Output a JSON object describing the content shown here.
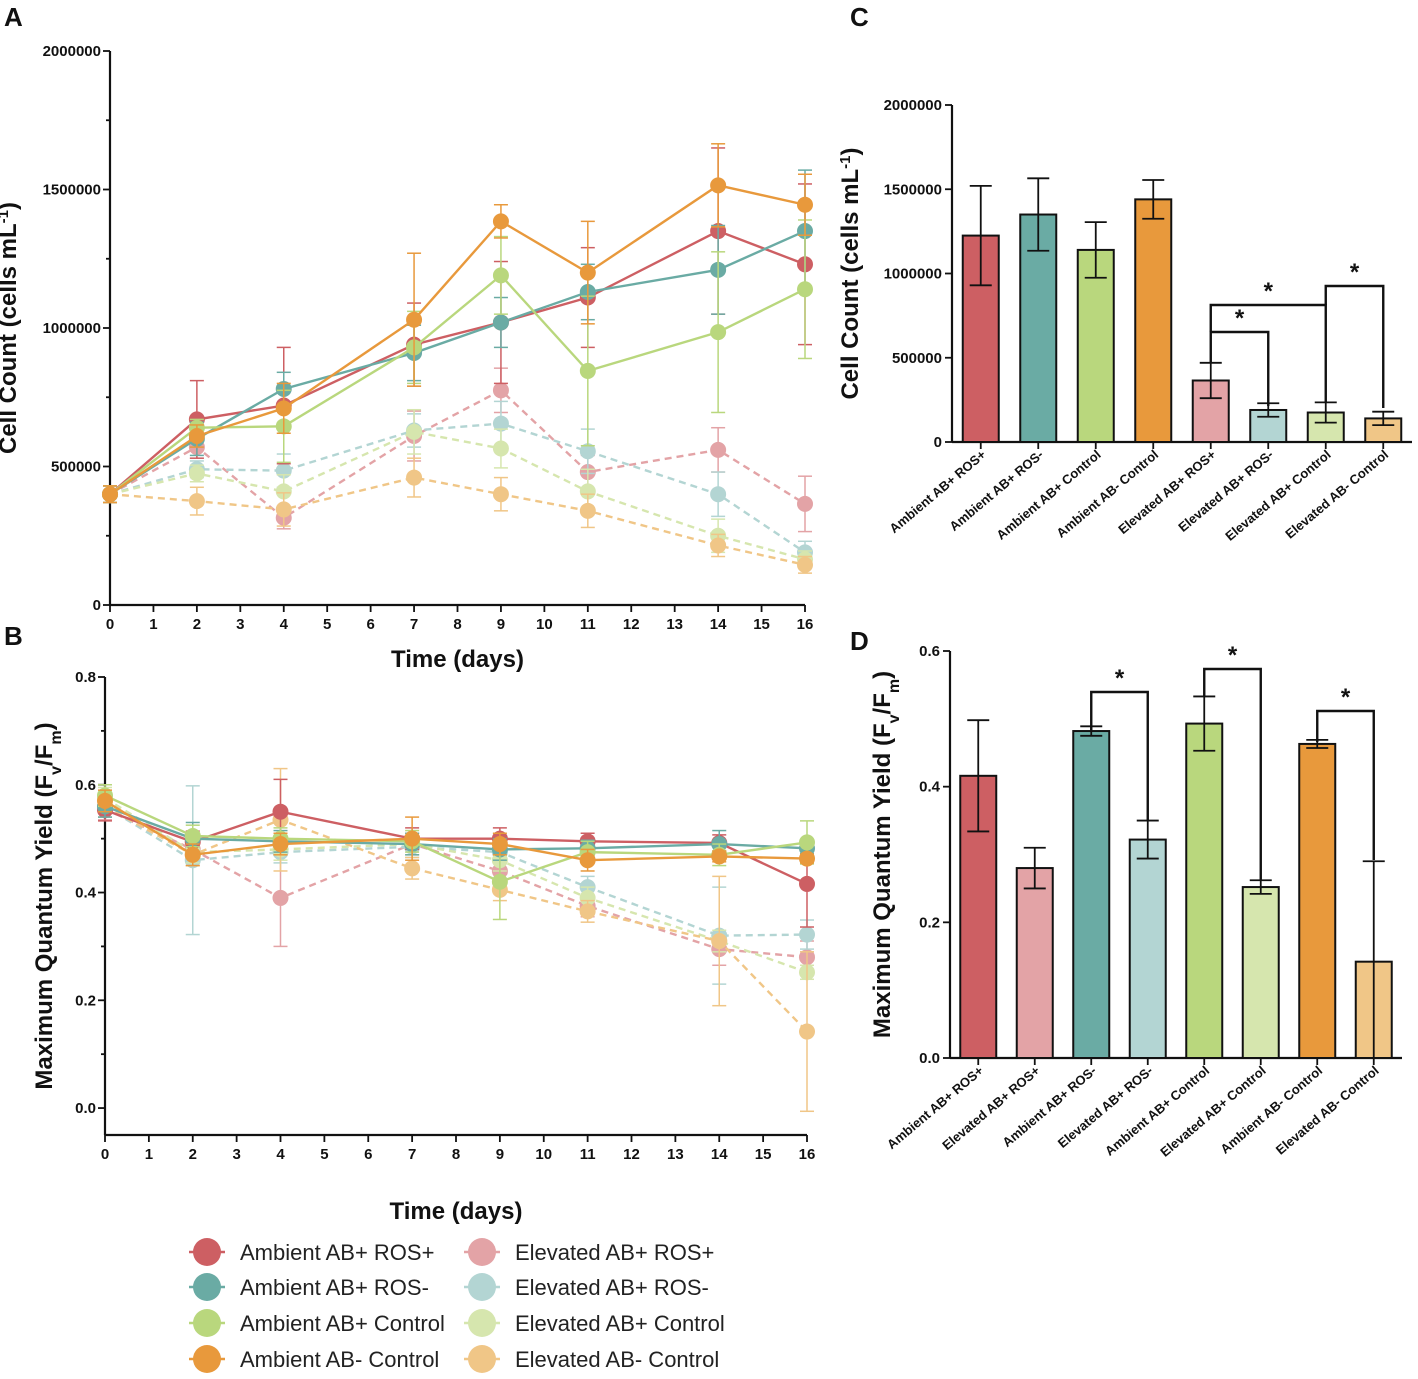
{
  "panels": {
    "A": "A",
    "B": "B",
    "C": "C",
    "D": "D"
  },
  "colors": {
    "Ambient AB+ ROS+": "#cd5f63",
    "Ambient AB+ ROS-": "#6aaba4",
    "Ambient AB+ Control": "#b9d77d",
    "Ambient AB- Control": "#e8993c",
    "Elevated AB+ ROS+": "#e3a3a6",
    "Elevated AB+ ROS-": "#b3d5d3",
    "Elevated AB+ Control": "#d6e6ae",
    "Elevated AB- Control": "#f0c687"
  },
  "legend": [
    "Ambient AB+ ROS+",
    "Ambient AB+ ROS-",
    "Ambient AB+ Control",
    "Ambient AB- Control",
    "Elevated AB+ ROS+",
    "Elevated AB+ ROS-",
    "Elevated AB+ Control",
    "Elevated AB- Control"
  ],
  "chart_data": [
    {
      "id": "A",
      "type": "line",
      "title": "",
      "xlabel": "Time (days)",
      "ylabel": "Cell Count (cells mL⁻¹)",
      "x": [
        0,
        2,
        4,
        7,
        9,
        11,
        14,
        16
      ],
      "xlim": [
        0,
        16
      ],
      "xticks": [
        "0",
        "1",
        "2",
        "3",
        "4",
        "5",
        "6",
        "7",
        "8",
        "9",
        "10",
        "11",
        "12",
        "13",
        "14",
        "15",
        "16"
      ],
      "ylim": [
        0,
        2000000
      ],
      "yticks": [
        "0",
        "500000",
        "1000000",
        "1500000",
        "2000000"
      ],
      "series": [
        {
          "name": "Ambient AB+ ROS+",
          "style": "solid",
          "values": [
            400000,
            670000,
            720000,
            940000,
            1020000,
            1110000,
            1350000,
            1230000
          ],
          "err": [
            30000,
            140000,
            210000,
            150000,
            220000,
            180000,
            300000,
            290000
          ]
        },
        {
          "name": "Ambient AB+ ROS-",
          "style": "solid",
          "values": [
            400000,
            600000,
            780000,
            910000,
            1020000,
            1130000,
            1210000,
            1350000
          ],
          "err": [
            30000,
            60000,
            60000,
            100000,
            90000,
            100000,
            160000,
            220000
          ]
        },
        {
          "name": "Ambient AB+ Control",
          "style": "solid",
          "values": [
            400000,
            640000,
            645000,
            930000,
            1190000,
            845000,
            985000,
            1140000
          ],
          "err": [
            30000,
            30000,
            130000,
            130000,
            140000,
            270000,
            290000,
            250000
          ]
        },
        {
          "name": "Ambient AB- Control",
          "style": "solid",
          "values": [
            400000,
            610000,
            710000,
            1030000,
            1385000,
            1200000,
            1515000,
            1445000
          ],
          "err": [
            30000,
            40000,
            90000,
            240000,
            60000,
            185000,
            150000,
            110000
          ]
        },
        {
          "name": "Elevated AB+ ROS+",
          "style": "dashed",
          "values": [
            400000,
            570000,
            315000,
            610000,
            775000,
            480000,
            560000,
            365000
          ],
          "err": [
            30000,
            40000,
            40000,
            90000,
            80000,
            60000,
            80000,
            100000
          ]
        },
        {
          "name": "Elevated AB+ ROS-",
          "style": "dashed",
          "values": [
            400000,
            490000,
            485000,
            630000,
            655000,
            555000,
            400000,
            190000
          ],
          "err": [
            30000,
            30000,
            60000,
            60000,
            80000,
            80000,
            80000,
            40000
          ]
        },
        {
          "name": "Elevated AB+ Control",
          "style": "dashed",
          "values": [
            400000,
            475000,
            410000,
            625000,
            565000,
            410000,
            250000,
            165000
          ],
          "err": [
            30000,
            30000,
            60000,
            80000,
            70000,
            80000,
            60000,
            30000
          ]
        },
        {
          "name": "Elevated AB- Control",
          "style": "dashed",
          "values": [
            400000,
            375000,
            345000,
            460000,
            400000,
            340000,
            215000,
            145000
          ],
          "err": [
            30000,
            50000,
            60000,
            70000,
            60000,
            60000,
            40000,
            30000
          ]
        }
      ]
    },
    {
      "id": "B",
      "type": "line",
      "title": "",
      "xlabel": "Time (days)",
      "ylabel": "Maximum Quantum Yield (Fv/Fm)",
      "x": [
        0,
        2,
        4,
        7,
        9,
        11,
        14,
        16
      ],
      "xlim": [
        0,
        16
      ],
      "xticks": [
        "0",
        "1",
        "2",
        "3",
        "4",
        "5",
        "6",
        "7",
        "8",
        "9",
        "10",
        "11",
        "12",
        "13",
        "14",
        "15",
        "16"
      ],
      "ylim": [
        -0.05,
        0.8
      ],
      "yticks": [
        "0.0",
        "0.2",
        "0.4",
        "0.6",
        "0.8"
      ],
      "series": [
        {
          "name": "Ambient AB+ ROS+",
          "style": "solid",
          "values": [
            0.553,
            0.494,
            0.55,
            0.5,
            0.5,
            0.495,
            0.492,
            0.416
          ],
          "err": [
            0.02,
            0.02,
            0.06,
            0.02,
            0.02,
            0.015,
            0.015,
            0.08
          ]
        },
        {
          "name": "Ambient AB+ ROS-",
          "style": "solid",
          "values": [
            0.56,
            0.5,
            0.495,
            0.49,
            0.48,
            0.482,
            0.49,
            0.482
          ],
          "err": [
            0.02,
            0.03,
            0.02,
            0.02,
            0.02,
            0.015,
            0.025,
            0.01
          ]
        },
        {
          "name": "Ambient AB+ Control",
          "style": "solid",
          "values": [
            0.58,
            0.505,
            0.5,
            0.495,
            0.42,
            0.475,
            0.47,
            0.493
          ],
          "err": [
            0.02,
            0.02,
            0.02,
            0.02,
            0.07,
            0.02,
            0.02,
            0.04
          ]
        },
        {
          "name": "Ambient AB- Control",
          "style": "solid",
          "values": [
            0.57,
            0.47,
            0.49,
            0.5,
            0.49,
            0.46,
            0.467,
            0.463
          ],
          "err": [
            0.02,
            0.02,
            0.02,
            0.04,
            0.02,
            0.02,
            0.01,
            0.008
          ]
        },
        {
          "name": "Elevated AB+ ROS+",
          "style": "dashed",
          "values": [
            0.555,
            0.48,
            0.39,
            0.49,
            0.44,
            0.375,
            0.295,
            0.28
          ],
          "err": [
            0.02,
            0.02,
            0.09,
            0.02,
            0.03,
            0.02,
            0.03,
            0.03
          ]
        },
        {
          "name": "Elevated AB+ ROS-",
          "style": "dashed",
          "values": [
            0.56,
            0.46,
            0.475,
            0.485,
            0.475,
            0.41,
            0.32,
            0.322
          ],
          "err": [
            0.02,
            0.138,
            0.02,
            0.02,
            0.02,
            0.02,
            0.09,
            0.027
          ]
        },
        {
          "name": "Elevated AB+ Control",
          "style": "dashed",
          "values": [
            0.575,
            0.475,
            0.48,
            0.49,
            0.46,
            0.39,
            0.31,
            0.252
          ],
          "err": [
            0.02,
            0.02,
            0.02,
            0.02,
            0.02,
            0.02,
            0.02,
            0.013
          ]
        },
        {
          "name": "Elevated AB- Control",
          "style": "dashed",
          "values": [
            0.56,
            0.47,
            0.535,
            0.445,
            0.405,
            0.365,
            0.31,
            0.142
          ],
          "err": [
            0.02,
            0.02,
            0.095,
            0.02,
            0.02,
            0.02,
            0.12,
            0.148
          ]
        }
      ]
    },
    {
      "id": "C",
      "type": "bar",
      "title": "",
      "xlabel": "",
      "ylabel": "Cell Count (cells mL⁻¹)",
      "categories": [
        "Ambient AB+ ROS+",
        "Ambient AB+ ROS-",
        "Ambient AB+ Control",
        "Ambient AB- Control",
        "Elevated AB+ ROS+",
        "Elevated AB+ ROS-",
        "Elevated AB+ Control",
        "Elevated AB- Control"
      ],
      "values": [
        1225000,
        1350000,
        1140000,
        1440000,
        365000,
        190000,
        175000,
        140000
      ],
      "err": [
        295000,
        215000,
        165000,
        115000,
        105000,
        40000,
        60000,
        40000
      ],
      "ylim": [
        0,
        2000000
      ],
      "yticks": [
        "0",
        "500000",
        "1000000",
        "1500000",
        "2000000"
      ],
      "significance": [
        {
          "from": 4,
          "to": 5,
          "label": "*"
        },
        {
          "from": 4,
          "to": 6,
          "label": "*"
        },
        {
          "from": 6,
          "to": 7,
          "label": "*"
        }
      ]
    },
    {
      "id": "D",
      "type": "bar",
      "title": "",
      "xlabel": "",
      "ylabel": "Maximum Quantum Yield (Fv/Fm)",
      "categories": [
        "Ambient AB+ ROS+",
        "Elevated AB+ ROS+",
        "Ambient AB+ ROS-",
        "Elevated AB+ ROS-",
        "Ambient AB+ Control",
        "Elevated AB+ Control",
        "Ambient AB- Control",
        "Elevated AB- Control"
      ],
      "values": [
        0.416,
        0.28,
        0.482,
        0.322,
        0.493,
        0.252,
        0.463,
        0.142
      ],
      "err": [
        0.082,
        0.03,
        0.007,
        0.028,
        0.04,
        0.01,
        0.006,
        0.148
      ],
      "ylim": [
        0,
        0.6
      ],
      "yticks": [
        "0.0",
        "0.2",
        "0.4",
        "0.6"
      ],
      "significance": [
        {
          "from": 2,
          "to": 3,
          "label": "*"
        },
        {
          "from": 4,
          "to": 5,
          "label": "*"
        },
        {
          "from": 6,
          "to": 7,
          "label": "*"
        }
      ]
    }
  ]
}
